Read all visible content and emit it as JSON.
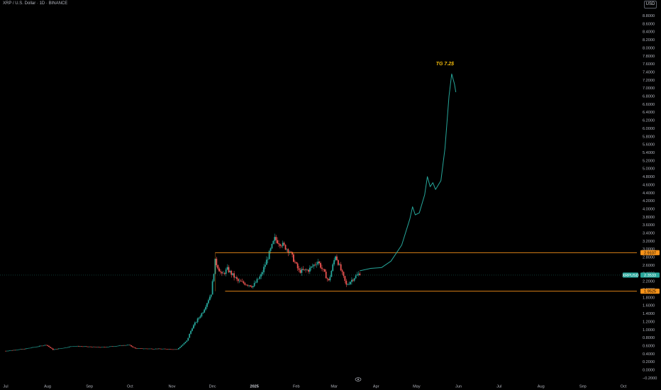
{
  "header": {
    "title": "XRP / U.S. Dollar · 1D · BINANCE",
    "currency": "USD"
  },
  "colors": {
    "up": "#26a69a",
    "down": "#ef5350",
    "projection": "#26a69a",
    "range_box": "#f7931a",
    "label_orange": "#f7931a",
    "label_teal": "#26a69a",
    "annotation": "#f0b90b"
  },
  "chart_data": {
    "type": "candlestick",
    "symbol": "XRPUSD",
    "exchange": "BINANCE",
    "interval": "1D",
    "y_axis": {
      "ticks": [
        "8.8000",
        "8.6000",
        "8.4000",
        "8.2000",
        "8.0000",
        "7.8000",
        "7.6000",
        "7.4000",
        "7.2000",
        "7.0000",
        "6.8000",
        "6.6000",
        "6.4000",
        "6.2000",
        "6.0000",
        "5.8000",
        "5.6000",
        "5.4000",
        "5.2000",
        "5.0000",
        "4.8000",
        "4.6000",
        "4.4000",
        "4.2000",
        "4.0000",
        "3.8000",
        "3.6000",
        "3.4000",
        "3.2000",
        "3.0000",
        "2.8000",
        "2.6000",
        "2.4000",
        "2.2000",
        "2.0000",
        "1.8000",
        "1.6000",
        "1.4000",
        "1.2000",
        "1.0000",
        "0.8000",
        "0.6000",
        "0.4000",
        "0.2000",
        "0.0000",
        "−0.2000"
      ],
      "range": [
        -0.25,
        8.95
      ]
    },
    "x_axis": {
      "ticks": [
        "Jul",
        "Aug",
        "Sep",
        "Oct",
        "Nov",
        "Dec",
        "2025",
        "Feb",
        "Mar",
        "Apr",
        "May",
        "Jun",
        "Jul",
        "Aug",
        "Sep",
        "Oct"
      ],
      "range": [
        "2024-07-01",
        "2025-10-01"
      ]
    },
    "price_points": [
      {
        "date": "2024-07-01",
        "price": 0.47
      },
      {
        "date": "2024-07-15",
        "price": 0.52
      },
      {
        "date": "2024-07-31",
        "price": 0.62
      },
      {
        "date": "2024-08-05",
        "price": 0.5
      },
      {
        "date": "2024-08-20",
        "price": 0.59
      },
      {
        "date": "2024-09-10",
        "price": 0.56
      },
      {
        "date": "2024-09-30",
        "price": 0.62
      },
      {
        "date": "2024-10-05",
        "price": 0.53
      },
      {
        "date": "2024-10-25",
        "price": 0.52
      },
      {
        "date": "2024-11-05",
        "price": 0.51
      },
      {
        "date": "2024-11-12",
        "price": 0.72
      },
      {
        "date": "2024-11-16",
        "price": 1.05
      },
      {
        "date": "2024-11-24",
        "price": 1.45
      },
      {
        "date": "2024-11-30",
        "price": 1.9
      },
      {
        "date": "2024-12-03",
        "price": 2.7
      },
      {
        "date": "2024-12-08",
        "price": 2.35
      },
      {
        "date": "2024-12-12",
        "price": 2.5
      },
      {
        "date": "2024-12-20",
        "price": 2.2
      },
      {
        "date": "2024-12-31",
        "price": 2.08
      },
      {
        "date": "2025-01-06",
        "price": 2.35
      },
      {
        "date": "2025-01-16",
        "price": 3.25
      },
      {
        "date": "2025-01-22",
        "price": 3.1
      },
      {
        "date": "2025-01-27",
        "price": 2.95
      },
      {
        "date": "2025-02-03",
        "price": 2.45
      },
      {
        "date": "2025-02-10",
        "price": 2.48
      },
      {
        "date": "2025-02-17",
        "price": 2.7
      },
      {
        "date": "2025-02-25",
        "price": 2.2
      },
      {
        "date": "2025-03-02",
        "price": 2.85
      },
      {
        "date": "2025-03-10",
        "price": 2.1
      },
      {
        "date": "2025-03-16",
        "price": 2.3
      },
      {
        "date": "2025-03-20",
        "price": 2.4
      }
    ],
    "projection": [
      {
        "date": "2025-03-20",
        "price": 2.46
      },
      {
        "date": "2025-03-28",
        "price": 2.52
      },
      {
        "date": "2025-04-05",
        "price": 2.54
      },
      {
        "date": "2025-04-12",
        "price": 2.7
      },
      {
        "date": "2025-04-20",
        "price": 3.1
      },
      {
        "date": "2025-04-26",
        "price": 3.75
      },
      {
        "date": "2025-04-28",
        "price": 4.05
      },
      {
        "date": "2025-04-30",
        "price": 3.85
      },
      {
        "date": "2025-05-03",
        "price": 3.9
      },
      {
        "date": "2025-05-07",
        "price": 4.35
      },
      {
        "date": "2025-05-09",
        "price": 4.8
      },
      {
        "date": "2025-05-11",
        "price": 4.55
      },
      {
        "date": "2025-05-13",
        "price": 4.65
      },
      {
        "date": "2025-05-15",
        "price": 4.48
      },
      {
        "date": "2025-05-19",
        "price": 4.7
      },
      {
        "date": "2025-05-22",
        "price": 5.5
      },
      {
        "date": "2025-05-25",
        "price": 6.8
      },
      {
        "date": "2025-05-27",
        "price": 7.35
      },
      {
        "date": "2025-05-29",
        "price": 7.1
      },
      {
        "date": "2025-05-30",
        "price": 6.9
      }
    ],
    "range_box": {
      "start": "2024-12-03",
      "end": "2025-10-01",
      "upper": 2.9107,
      "lower": 1.9525
    },
    "price_labels": [
      {
        "text": "2.9107",
        "price": 2.9107,
        "style": "orange"
      },
      {
        "text": "XRPUSD",
        "price": 2.3533,
        "style": "teal-name"
      },
      {
        "text": "2.3533",
        "price": 2.3533,
        "style": "teal"
      },
      {
        "text": "1.9525",
        "price": 1.9525,
        "style": "orange"
      }
    ],
    "annotation": {
      "text": "TG 7.2$",
      "date": "2025-05-22",
      "price": 7.6
    }
  }
}
